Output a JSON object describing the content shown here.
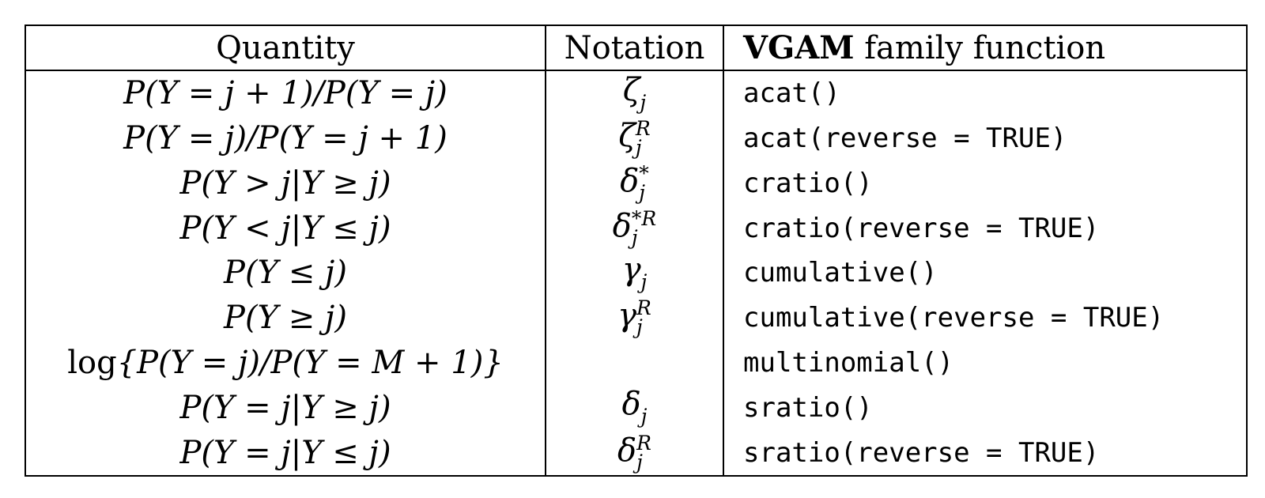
{
  "header": {
    "quantity": "Quantity",
    "notation": "Notation",
    "family_bold": "VGAM",
    "family_rest": " family function"
  },
  "rows": [
    {
      "quantity": "P(Y = j + 1)/P(Y = j)",
      "notation": {
        "base": "ζ",
        "sup": "",
        "sub": "j"
      },
      "function": "acat()"
    },
    {
      "quantity": "P(Y = j)/P(Y = j + 1)",
      "notation": {
        "base": "ζ",
        "sup": "R",
        "sub": "j"
      },
      "function": "acat(reverse = TRUE)"
    },
    {
      "quantity": "P(Y > j|Y ≥ j)",
      "notation": {
        "base": "δ",
        "sup": "*",
        "sub": "j"
      },
      "function": "cratio()"
    },
    {
      "quantity": "P(Y < j|Y ≤ j)",
      "notation": {
        "base": "δ",
        "sup": "*R",
        "sub": "j"
      },
      "function": "cratio(reverse = TRUE)"
    },
    {
      "quantity": "P(Y ≤ j)",
      "notation": {
        "base": "γ",
        "sup": "",
        "sub": "j"
      },
      "function": "cumulative()"
    },
    {
      "quantity": "P(Y ≥ j)",
      "notation": {
        "base": "γ",
        "sup": "R",
        "sub": "j"
      },
      "function": "cumulative(reverse = TRUE)"
    },
    {
      "quantity_prefix": "log",
      "quantity": "{P(Y = j)/P(Y = M + 1)}",
      "notation": {
        "base": "",
        "sup": "",
        "sub": ""
      },
      "function": "multinomial()"
    },
    {
      "quantity": "P(Y = j|Y ≥ j)",
      "notation": {
        "base": "δ",
        "sup": "",
        "sub": "j"
      },
      "function": "sratio()"
    },
    {
      "quantity": "P(Y = j|Y ≤ j)",
      "notation": {
        "base": "δ",
        "sup": "R",
        "sub": "j"
      },
      "function": "sratio(reverse = TRUE)"
    }
  ]
}
